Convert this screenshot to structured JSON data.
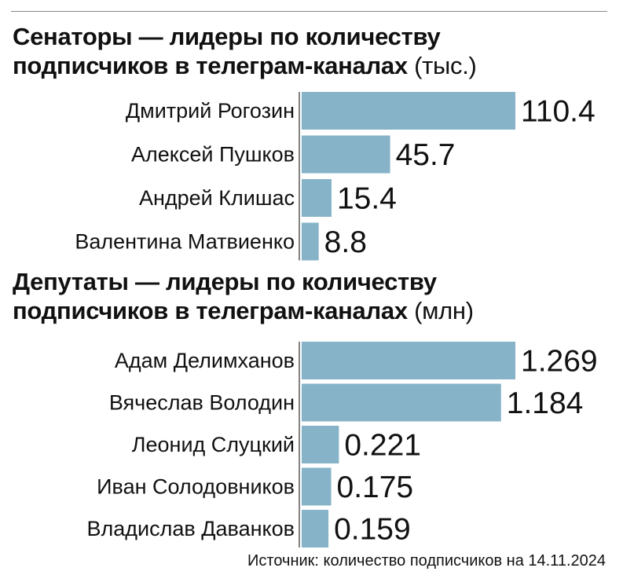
{
  "colors": {
    "bar": "#86b3c8",
    "axis": "#333333",
    "text": "#111111"
  },
  "chart_data": [
    {
      "type": "bar",
      "orientation": "horizontal",
      "title_line1": "Сенаторы — лидеры по количеству",
      "title_line2_bold": "подписчиков в телеграм-каналах",
      "unit": "(тыс.)",
      "categories": [
        "Дмитрий Рогозин",
        "Алексей Пушков",
        "Андрей Клишас",
        "Валентина Матвиенко"
      ],
      "values": [
        110.4,
        45.7,
        15.4,
        8.8
      ],
      "labels": [
        "110.4",
        "45.7",
        "15.4",
        "8.8"
      ],
      "xlim": [
        0,
        110.4
      ],
      "grid": false,
      "legend": "none"
    },
    {
      "type": "bar",
      "orientation": "horizontal",
      "title_line1": "Депутаты — лидеры по количеству",
      "title_line2_bold": "подписчиков в телеграм-каналах",
      "unit": "(млн)",
      "categories": [
        "Адам Делимханов",
        "Вячеслав Володин",
        "Леонид Слуцкий",
        "Иван Солодовников",
        "Владислав Даванков"
      ],
      "values": [
        1.269,
        1.184,
        0.221,
        0.175,
        0.159
      ],
      "labels": [
        "1.269",
        "1.184",
        "0.221",
        "0.175",
        "0.159"
      ],
      "xlim": [
        0,
        1.269
      ],
      "grid": false,
      "legend": "none"
    }
  ],
  "source": "Источник: количество подписчиков на 14.11.2024"
}
